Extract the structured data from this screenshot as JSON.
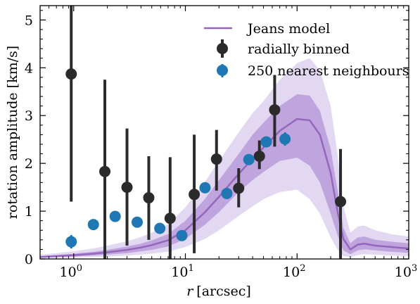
{
  "chart_data": {
    "type": "scatter",
    "xscale": "log",
    "xlim": [
      0.5,
      1000
    ],
    "ylim": [
      0,
      5.3
    ],
    "xlabel": "r [arcsec]",
    "ylabel": "rotation amplitude [km/s]",
    "x_ticks": [
      {
        "value": 1,
        "base": "10",
        "exp": "0"
      },
      {
        "value": 10,
        "base": "10",
        "exp": "1"
      },
      {
        "value": 100,
        "base": "10",
        "exp": "2"
      },
      {
        "value": 1000,
        "base": "10",
        "exp": "3"
      }
    ],
    "y_ticks": [
      0,
      1,
      2,
      3,
      4,
      5
    ],
    "legend": {
      "position": "top-right",
      "entries": [
        "Jeans model",
        "radially binned",
        "250 nearest neighbours"
      ]
    },
    "colors": {
      "model": "#9467bd",
      "model_band_inner": "#b89bd9",
      "model_band_outer": "#e3d8f1",
      "binned": "#2b2b2b",
      "neighbours": "#1f77b4"
    },
    "series": [
      {
        "name": "Jeans model",
        "kind": "line_with_bands",
        "x": [
          0.5,
          0.7,
          1,
          1.5,
          2,
          3,
          4,
          5,
          7,
          10,
          15,
          20,
          30,
          40,
          50,
          70,
          100,
          130,
          160,
          200,
          230,
          260,
          300,
          350,
          400,
          500,
          700,
          1000
        ],
        "y": [
          0.04,
          0.06,
          0.08,
          0.11,
          0.14,
          0.19,
          0.24,
          0.29,
          0.39,
          0.6,
          0.98,
          1.3,
          1.78,
          2.1,
          2.33,
          2.68,
          2.93,
          2.9,
          2.6,
          1.8,
          1.0,
          0.42,
          0.2,
          0.3,
          0.32,
          0.28,
          0.25,
          0.22
        ],
        "inner_low": [
          0.03,
          0.04,
          0.05,
          0.07,
          0.09,
          0.12,
          0.16,
          0.19,
          0.26,
          0.42,
          0.72,
          0.98,
          1.4,
          1.65,
          1.82,
          2.05,
          2.12,
          1.95,
          1.6,
          0.95,
          0.5,
          0.18,
          0.1,
          0.18,
          0.2,
          0.18,
          0.15,
          0.13
        ],
        "inner_high": [
          0.06,
          0.08,
          0.11,
          0.15,
          0.19,
          0.26,
          0.32,
          0.39,
          0.52,
          0.8,
          1.26,
          1.65,
          2.2,
          2.6,
          2.85,
          3.2,
          3.45,
          3.42,
          3.1,
          2.3,
          1.45,
          0.65,
          0.33,
          0.45,
          0.47,
          0.4,
          0.36,
          0.33
        ],
        "outer_low": [
          0.02,
          0.02,
          0.03,
          0.04,
          0.05,
          0.07,
          0.09,
          0.11,
          0.15,
          0.25,
          0.42,
          0.6,
          0.9,
          1.1,
          1.25,
          1.4,
          1.45,
          1.25,
          0.95,
          0.45,
          0.2,
          0.06,
          0.04,
          0.08,
          0.1,
          0.09,
          0.07,
          0.06
        ],
        "outer_high": [
          0.09,
          0.12,
          0.16,
          0.22,
          0.28,
          0.37,
          0.46,
          0.55,
          0.72,
          1.08,
          1.62,
          2.05,
          2.65,
          3.05,
          3.3,
          3.75,
          4.1,
          4.2,
          3.95,
          3.2,
          2.2,
          1.1,
          0.55,
          0.68,
          0.7,
          0.6,
          0.52,
          0.47
        ]
      },
      {
        "name": "radially binned",
        "kind": "errorbar",
        "points": [
          {
            "x": 0.95,
            "y": 3.87,
            "lo": 1.2,
            "hi": 5.3
          },
          {
            "x": 1.9,
            "y": 1.83,
            "lo": 0.0,
            "hi": 3.75
          },
          {
            "x": 3.0,
            "y": 1.5,
            "lo": 0.28,
            "hi": 2.73
          },
          {
            "x": 4.7,
            "y": 1.28,
            "lo": 0.4,
            "hi": 2.15
          },
          {
            "x": 7.3,
            "y": 0.85,
            "lo": 0.0,
            "hi": 2.13
          },
          {
            "x": 12.0,
            "y": 1.35,
            "lo": 0.12,
            "hi": 2.6
          },
          {
            "x": 19.0,
            "y": 2.09,
            "lo": 1.43,
            "hi": 2.7
          },
          {
            "x": 30.0,
            "y": 1.48,
            "lo": 1.08,
            "hi": 1.9
          },
          {
            "x": 46.0,
            "y": 2.15,
            "lo": 1.88,
            "hi": 2.48
          },
          {
            "x": 63.0,
            "y": 3.12,
            "lo": 2.35,
            "hi": 3.85
          },
          {
            "x": 245.0,
            "y": 1.2,
            "lo": 0.0,
            "hi": 2.3
          }
        ]
      },
      {
        "name": "250 nearest neighbours",
        "kind": "errorbar",
        "points": [
          {
            "x": 0.95,
            "y": 0.36,
            "lo": 0.22,
            "hi": 0.5
          },
          {
            "x": 1.5,
            "y": 0.72,
            "lo": 0.62,
            "hi": 0.82
          },
          {
            "x": 2.35,
            "y": 0.89,
            "lo": 0.8,
            "hi": 0.98
          },
          {
            "x": 3.7,
            "y": 0.77,
            "lo": 0.69,
            "hi": 0.85
          },
          {
            "x": 5.9,
            "y": 0.64,
            "lo": 0.57,
            "hi": 0.71
          },
          {
            "x": 9.3,
            "y": 0.49,
            "lo": 0.42,
            "hi": 0.56
          },
          {
            "x": 15.0,
            "y": 1.49,
            "lo": 1.41,
            "hi": 1.57
          },
          {
            "x": 23.5,
            "y": 1.37,
            "lo": 1.29,
            "hi": 1.45
          },
          {
            "x": 37.0,
            "y": 2.08,
            "lo": 1.99,
            "hi": 2.17
          },
          {
            "x": 53.0,
            "y": 2.45,
            "lo": 2.35,
            "hi": 2.55
          },
          {
            "x": 78.0,
            "y": 2.51,
            "lo": 2.37,
            "hi": 2.65
          }
        ]
      }
    ]
  }
}
